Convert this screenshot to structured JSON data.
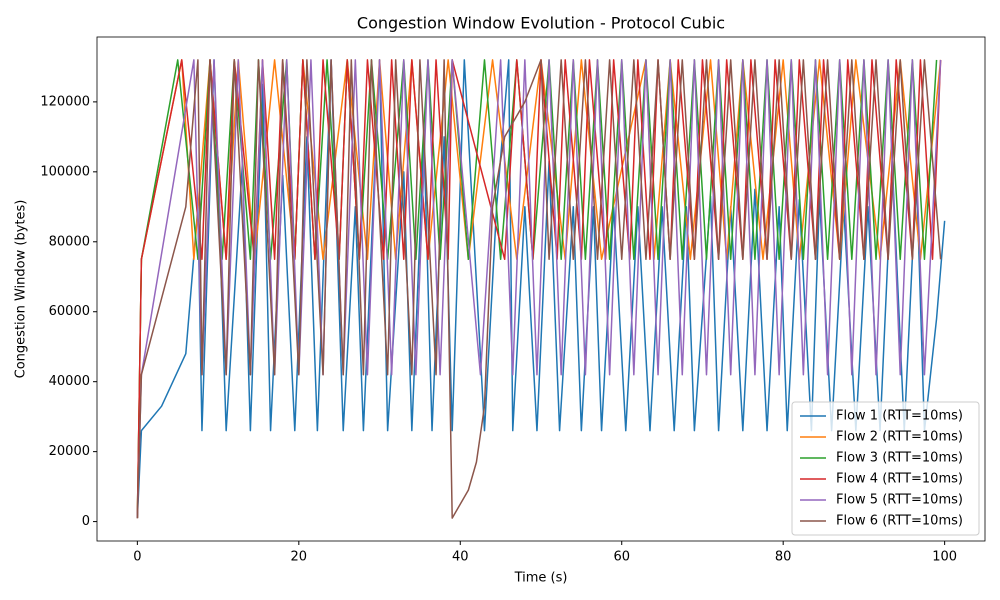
{
  "chart_data": {
    "type": "line",
    "title": "Congestion Window Evolution - Protocol Cubic",
    "x_label": "Time (s)",
    "y_label": "Congestion Window (bytes)",
    "xlim": [
      -5,
      105
    ],
    "ylim": [
      -5550,
      138550
    ],
    "xticks": [
      0,
      20,
      40,
      60,
      80,
      100
    ],
    "yticks": [
      0,
      20000,
      40000,
      60000,
      80000,
      100000,
      120000
    ],
    "grid": false,
    "legend": "lower right",
    "series": [
      {
        "name": "Flow 1 (RTT=10ms)",
        "color": "#1f77b4",
        "x": [
          0,
          0.5,
          3,
          6,
          7.5,
          8,
          9.5,
          11,
          13,
          14,
          15.5,
          16.5,
          18,
          19.5,
          21,
          22.3,
          24,
          25.5,
          27,
          28,
          30,
          31,
          33,
          34,
          35.5,
          36.5,
          38,
          39,
          40.5,
          43,
          44.5,
          46,
          46.5,
          48,
          49.5,
          51,
          52.3,
          54,
          55,
          56.5,
          57.5,
          59,
          60.5,
          62,
          63.5,
          65,
          66.5,
          68,
          69,
          71,
          72,
          73.5,
          75,
          76.5,
          78,
          79.5,
          80.5,
          82,
          83.5,
          84.5,
          86,
          87.5,
          89,
          90.5,
          92,
          93.5,
          95,
          96.5,
          97.5,
          99,
          100
        ],
        "values": [
          1000,
          26000,
          33000,
          48000,
          90000,
          26000,
          132000,
          26000,
          102000,
          26000,
          125000,
          26000,
          99000,
          26000,
          110000,
          26000,
          132000,
          26000,
          90000,
          26000,
          132000,
          26000,
          100000,
          26000,
          110000,
          26000,
          110000,
          26000,
          132000,
          26000,
          90000,
          132000,
          26000,
          90000,
          26000,
          103000,
          26000,
          90000,
          26000,
          90000,
          26000,
          90000,
          26000,
          90000,
          26000,
          90000,
          26000,
          90000,
          26000,
          93000,
          26000,
          90000,
          26000,
          95000,
          26000,
          90000,
          26000,
          92000,
          26000,
          93000,
          26000,
          90000,
          26000,
          90000,
          26000,
          103000,
          26000,
          100000,
          26000,
          58000,
          86000
        ]
      },
      {
        "name": "Flow 2 (RTT=10ms)",
        "color": "#ff7f0e",
        "x": [
          0,
          0.5,
          5.5,
          7,
          9,
          11,
          12.5,
          14.5,
          17,
          19.5,
          20.5,
          23,
          26,
          28.5,
          30,
          32,
          34,
          36,
          38.5,
          41,
          44,
          47,
          50,
          53,
          55,
          57.5,
          63,
          64,
          66,
          68.5,
          71,
          73,
          75,
          77.5,
          80,
          82,
          84.5,
          87,
          89,
          92,
          94.5,
          97,
          99.5
        ],
        "values": [
          1000,
          75000,
          132000,
          75000,
          132000,
          75000,
          132000,
          75000,
          132000,
          75000,
          132000,
          75000,
          132000,
          75000,
          132000,
          75000,
          132000,
          75000,
          132000,
          75000,
          132000,
          75000,
          132000,
          75000,
          132000,
          75000,
          132000,
          75000,
          132000,
          75000,
          132000,
          75000,
          132000,
          75000,
          132000,
          75000,
          132000,
          75000,
          132000,
          75000,
          132000,
          75000,
          132000
        ]
      },
      {
        "name": "Flow 3 (RTT=10ms)",
        "color": "#2ca02c",
        "x": [
          0,
          0.5,
          5,
          7.5,
          9,
          10.5,
          12,
          14,
          15,
          16.5,
          18.5,
          19.5,
          20.5,
          22,
          23.5,
          25,
          26,
          27.5,
          29,
          31,
          33,
          34.5,
          36,
          37.5,
          39,
          41,
          43,
          45,
          47,
          49,
          51,
          52.5,
          54,
          55.5,
          57,
          58.5,
          60,
          61.5,
          63,
          64.5,
          66,
          67.5,
          69,
          70.5,
          72,
          73.5,
          75,
          76.5,
          78,
          79.5,
          81,
          82.5,
          84,
          85.5,
          87,
          88.5,
          90,
          91.5,
          93,
          94.5,
          96,
          97.5,
          99
        ],
        "values": [
          1000,
          75000,
          132000,
          75000,
          132000,
          75000,
          132000,
          75000,
          132000,
          75000,
          132000,
          75000,
          132000,
          75000,
          132000,
          75000,
          132000,
          75000,
          132000,
          75000,
          132000,
          75000,
          132000,
          75000,
          132000,
          75000,
          132000,
          75000,
          132000,
          75000,
          132000,
          75000,
          132000,
          75000,
          132000,
          75000,
          132000,
          75000,
          132000,
          75000,
          132000,
          75000,
          132000,
          75000,
          132000,
          75000,
          132000,
          75000,
          132000,
          75000,
          132000,
          75000,
          132000,
          75000,
          132000,
          75000,
          132000,
          75000,
          132000,
          75000,
          132000,
          75000,
          132000
        ]
      },
      {
        "name": "Flow 4 (RTT=10ms)",
        "color": "#d62728",
        "x": [
          0,
          0.5,
          5.5,
          8,
          9,
          11,
          12,
          14.5,
          15.5,
          17,
          18,
          19.5,
          20.5,
          22,
          23,
          25,
          26,
          27.5,
          28.5,
          30.5,
          31.5,
          33,
          34,
          36,
          37,
          38.5,
          39,
          45.5,
          47,
          49,
          50,
          52,
          53,
          55,
          56,
          58,
          59,
          61,
          62,
          63.5,
          64.5,
          66,
          67,
          69,
          70,
          72,
          73,
          75,
          76,
          78,
          79,
          81,
          82,
          84,
          85,
          87,
          88,
          90,
          91,
          93,
          94,
          96,
          97,
          98.5,
          99.5
        ],
        "values": [
          1000,
          75000,
          132000,
          75000,
          132000,
          75000,
          132000,
          75000,
          132000,
          75000,
          132000,
          75000,
          132000,
          75000,
          132000,
          75000,
          132000,
          75000,
          132000,
          75000,
          132000,
          75000,
          132000,
          75000,
          132000,
          75000,
          132000,
          75000,
          132000,
          75000,
          132000,
          75000,
          132000,
          75000,
          132000,
          75000,
          132000,
          75000,
          132000,
          75000,
          132000,
          75000,
          132000,
          75000,
          132000,
          75000,
          132000,
          75000,
          132000,
          75000,
          132000,
          75000,
          132000,
          75000,
          132000,
          75000,
          132000,
          75000,
          132000,
          75000,
          132000,
          75000,
          132000,
          75000,
          132000
        ]
      },
      {
        "name": "Flow 5 (RTT=10ms)",
        "color": "#9467bd",
        "x": [
          0,
          0.5,
          7,
          8,
          9.5,
          11,
          12.5,
          14,
          15.5,
          17,
          18.5,
          20,
          21.5,
          23,
          24,
          25.5,
          27,
          28.5,
          30,
          31.5,
          33,
          34.5,
          36,
          37.5,
          39,
          42.5,
          45,
          46.5,
          48,
          49.5,
          51,
          52.5,
          54,
          55.5,
          57,
          58.5,
          60,
          61.5,
          63,
          64.5,
          66,
          67.5,
          69,
          70.5,
          72,
          73.5,
          75,
          76.5,
          78,
          79.5,
          81,
          82.5,
          84,
          85.5,
          87,
          88.5,
          90,
          91.5,
          93,
          94.5,
          96,
          97.5,
          99.5
        ],
        "values": [
          1000,
          42000,
          132000,
          42000,
          132000,
          42000,
          132000,
          42000,
          132000,
          42000,
          132000,
          42000,
          132000,
          42000,
          132000,
          42000,
          132000,
          42000,
          132000,
          42000,
          132000,
          42000,
          132000,
          42000,
          132000,
          42000,
          132000,
          42000,
          132000,
          42000,
          132000,
          42000,
          132000,
          42000,
          132000,
          42000,
          132000,
          42000,
          132000,
          42000,
          132000,
          42000,
          132000,
          42000,
          132000,
          42000,
          132000,
          42000,
          132000,
          42000,
          132000,
          42000,
          132000,
          42000,
          132000,
          42000,
          132000,
          42000,
          132000,
          42000,
          132000,
          42000,
          132000
        ]
      },
      {
        "name": "Flow 6 (RTT=10ms)",
        "color": "#8c564b",
        "x": [
          0,
          0.5,
          6,
          7.5,
          8,
          9,
          11,
          12,
          14,
          15,
          17,
          18,
          20,
          21,
          23,
          24,
          25.5,
          26.5,
          28,
          29,
          31,
          32,
          34,
          35,
          37,
          38,
          39,
          40,
          41,
          42,
          43,
          44,
          45.5,
          48,
          50,
          51,
          52.5,
          54,
          55.5,
          57,
          58.5,
          60,
          61.5,
          63,
          64.5,
          66,
          67.5,
          69,
          70.5,
          72,
          73.5,
          75,
          76.5,
          78,
          79.5,
          81,
          82.5,
          84,
          85.5,
          87,
          88.5,
          90,
          91.5,
          93,
          94.5,
          96,
          97.5,
          99.5
        ],
        "values": [
          1000,
          42000,
          90000,
          132000,
          42000,
          132000,
          42000,
          132000,
          42000,
          132000,
          42000,
          132000,
          42000,
          132000,
          42000,
          132000,
          42000,
          132000,
          42000,
          132000,
          42000,
          132000,
          42000,
          132000,
          42000,
          132000,
          1000,
          5000,
          9000,
          17000,
          33000,
          90000,
          110000,
          120000,
          132000,
          75000,
          132000,
          75000,
          132000,
          75000,
          132000,
          75000,
          132000,
          75000,
          132000,
          75000,
          132000,
          75000,
          132000,
          75000,
          132000,
          75000,
          132000,
          75000,
          132000,
          75000,
          132000,
          75000,
          132000,
          75000,
          132000,
          75000,
          132000,
          75000,
          132000,
          75000,
          132000,
          75000
        ]
      }
    ]
  }
}
